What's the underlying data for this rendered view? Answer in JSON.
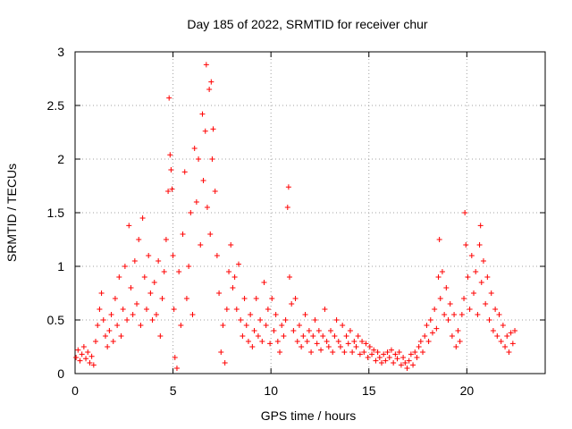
{
  "chart_data": {
    "type": "scatter",
    "title": "Day 185 of 2022, SRMTID for receiver chur",
    "xlabel": "GPS time / hours",
    "ylabel": "SRMTID / TECUs",
    "xlim": [
      0,
      24
    ],
    "ylim": [
      0,
      3
    ],
    "x_ticks": [
      "0",
      "5",
      "10",
      "15",
      "20"
    ],
    "y_ticks": [
      "0",
      "0.5",
      "1",
      "1.5",
      "2",
      "2.5",
      "3"
    ],
    "grid": true,
    "marker": "+",
    "color": "#ff0000",
    "series": [
      {
        "name": "SRMTID",
        "points": [
          [
            0.05,
            0.15
          ],
          [
            0.15,
            0.22
          ],
          [
            0.25,
            0.12
          ],
          [
            0.35,
            0.18
          ],
          [
            0.45,
            0.25
          ],
          [
            0.55,
            0.14
          ],
          [
            0.65,
            0.2
          ],
          [
            0.75,
            0.1
          ],
          [
            0.85,
            0.16
          ],
          [
            0.95,
            0.08
          ],
          [
            1.05,
            0.3
          ],
          [
            1.15,
            0.45
          ],
          [
            1.25,
            0.6
          ],
          [
            1.35,
            0.75
          ],
          [
            1.45,
            0.5
          ],
          [
            1.55,
            0.35
          ],
          [
            1.65,
            0.25
          ],
          [
            1.75,
            0.4
          ],
          [
            1.85,
            0.55
          ],
          [
            1.95,
            0.3
          ],
          [
            2.05,
            0.7
          ],
          [
            2.15,
            0.45
          ],
          [
            2.25,
            0.9
          ],
          [
            2.35,
            0.35
          ],
          [
            2.45,
            0.6
          ],
          [
            2.55,
            1.0
          ],
          [
            2.65,
            0.5
          ],
          [
            2.75,
            1.38
          ],
          [
            2.85,
            0.8
          ],
          [
            2.95,
            0.55
          ],
          [
            3.05,
            1.05
          ],
          [
            3.15,
            0.65
          ],
          [
            3.25,
            1.25
          ],
          [
            3.35,
            0.45
          ],
          [
            3.45,
            1.45
          ],
          [
            3.55,
            0.9
          ],
          [
            3.65,
            0.6
          ],
          [
            3.75,
            1.1
          ],
          [
            3.85,
            0.75
          ],
          [
            3.95,
            0.5
          ],
          [
            4.05,
            0.85
          ],
          [
            4.15,
            0.55
          ],
          [
            4.25,
            1.05
          ],
          [
            4.35,
            0.35
          ],
          [
            4.45,
            0.7
          ],
          [
            4.55,
            0.95
          ],
          [
            4.65,
            1.25
          ],
          [
            4.75,
            1.7
          ],
          [
            4.8,
            2.57
          ],
          [
            4.85,
            2.04
          ],
          [
            4.9,
            1.9
          ],
          [
            4.95,
            1.72
          ],
          [
            5.0,
            1.1
          ],
          [
            5.05,
            0.6
          ],
          [
            5.1,
            0.15
          ],
          [
            5.2,
            0.05
          ],
          [
            5.3,
            0.95
          ],
          [
            5.4,
            0.45
          ],
          [
            5.5,
            1.3
          ],
          [
            5.6,
            1.88
          ],
          [
            5.7,
            0.7
          ],
          [
            5.8,
            1.0
          ],
          [
            5.9,
            1.5
          ],
          [
            6.0,
            0.55
          ],
          [
            6.1,
            2.1
          ],
          [
            6.2,
            1.6
          ],
          [
            6.3,
            2.0
          ],
          [
            6.4,
            1.2
          ],
          [
            6.5,
            2.42
          ],
          [
            6.55,
            1.8
          ],
          [
            6.65,
            2.26
          ],
          [
            6.7,
            2.88
          ],
          [
            6.75,
            1.55
          ],
          [
            6.85,
            2.65
          ],
          [
            6.9,
            1.3
          ],
          [
            6.95,
            2.72
          ],
          [
            7.0,
            2.0
          ],
          [
            7.05,
            2.28
          ],
          [
            7.15,
            1.7
          ],
          [
            7.25,
            1.1
          ],
          [
            7.35,
            0.75
          ],
          [
            7.45,
            0.2
          ],
          [
            7.55,
            0.45
          ],
          [
            7.65,
            0.1
          ],
          [
            7.75,
            0.6
          ],
          [
            7.85,
            0.95
          ],
          [
            7.95,
            1.2
          ],
          [
            8.05,
            0.8
          ],
          [
            8.15,
            0.9
          ],
          [
            8.25,
            0.6
          ],
          [
            8.35,
            1.02
          ],
          [
            8.45,
            0.5
          ],
          [
            8.55,
            0.35
          ],
          [
            8.65,
            0.7
          ],
          [
            8.75,
            0.45
          ],
          [
            8.85,
            0.3
          ],
          [
            8.95,
            0.55
          ],
          [
            9.05,
            0.25
          ],
          [
            9.15,
            0.4
          ],
          [
            9.25,
            0.7
          ],
          [
            9.35,
            0.35
          ],
          [
            9.45,
            0.5
          ],
          [
            9.55,
            0.3
          ],
          [
            9.65,
            0.85
          ],
          [
            9.75,
            0.45
          ],
          [
            9.85,
            0.6
          ],
          [
            9.95,
            0.28
          ],
          [
            10.05,
            0.7
          ],
          [
            10.15,
            0.4
          ],
          [
            10.25,
            0.55
          ],
          [
            10.35,
            0.3
          ],
          [
            10.45,
            0.2
          ],
          [
            10.55,
            0.45
          ],
          [
            10.65,
            0.35
          ],
          [
            10.75,
            0.5
          ],
          [
            10.85,
            1.55
          ],
          [
            10.9,
            1.74
          ],
          [
            10.95,
            0.9
          ],
          [
            11.05,
            0.65
          ],
          [
            11.15,
            0.4
          ],
          [
            11.25,
            0.7
          ],
          [
            11.35,
            0.3
          ],
          [
            11.45,
            0.45
          ],
          [
            11.55,
            0.25
          ],
          [
            11.65,
            0.35
          ],
          [
            11.75,
            0.55
          ],
          [
            11.85,
            0.3
          ],
          [
            11.95,
            0.4
          ],
          [
            12.05,
            0.2
          ],
          [
            12.15,
            0.35
          ],
          [
            12.25,
            0.5
          ],
          [
            12.35,
            0.28
          ],
          [
            12.45,
            0.4
          ],
          [
            12.55,
            0.22
          ],
          [
            12.65,
            0.35
          ],
          [
            12.75,
            0.6
          ],
          [
            12.85,
            0.3
          ],
          [
            12.95,
            0.25
          ],
          [
            13.05,
            0.4
          ],
          [
            13.15,
            0.2
          ],
          [
            13.25,
            0.35
          ],
          [
            13.35,
            0.5
          ],
          [
            13.45,
            0.3
          ],
          [
            13.55,
            0.25
          ],
          [
            13.65,
            0.45
          ],
          [
            13.75,
            0.2
          ],
          [
            13.85,
            0.35
          ],
          [
            13.95,
            0.28
          ],
          [
            14.05,
            0.4
          ],
          [
            14.15,
            0.2
          ],
          [
            14.25,
            0.3
          ],
          [
            14.35,
            0.25
          ],
          [
            14.45,
            0.35
          ],
          [
            14.55,
            0.18
          ],
          [
            14.65,
            0.3
          ],
          [
            14.75,
            0.2
          ],
          [
            14.85,
            0.28
          ],
          [
            14.95,
            0.15
          ],
          [
            15.05,
            0.25
          ],
          [
            15.15,
            0.18
          ],
          [
            15.25,
            0.22
          ],
          [
            15.35,
            0.12
          ],
          [
            15.45,
            0.2
          ],
          [
            15.55,
            0.15
          ],
          [
            15.65,
            0.1
          ],
          [
            15.75,
            0.18
          ],
          [
            15.85,
            0.12
          ],
          [
            15.95,
            0.2
          ],
          [
            16.05,
            0.15
          ],
          [
            16.15,
            0.22
          ],
          [
            16.25,
            0.1
          ],
          [
            16.35,
            0.18
          ],
          [
            16.45,
            0.14
          ],
          [
            16.55,
            0.2
          ],
          [
            16.65,
            0.08
          ],
          [
            16.75,
            0.15
          ],
          [
            16.85,
            0.1
          ],
          [
            16.95,
            0.05
          ],
          [
            17.05,
            0.12
          ],
          [
            17.15,
            0.18
          ],
          [
            17.25,
            0.08
          ],
          [
            17.35,
            0.2
          ],
          [
            17.45,
            0.15
          ],
          [
            17.55,
            0.25
          ],
          [
            17.65,
            0.3
          ],
          [
            17.75,
            0.2
          ],
          [
            17.85,
            0.35
          ],
          [
            17.95,
            0.45
          ],
          [
            18.05,
            0.3
          ],
          [
            18.15,
            0.5
          ],
          [
            18.25,
            0.38
          ],
          [
            18.35,
            0.6
          ],
          [
            18.45,
            0.42
          ],
          [
            18.55,
            0.9
          ],
          [
            18.6,
            1.25
          ],
          [
            18.65,
            0.7
          ],
          [
            18.75,
            0.95
          ],
          [
            18.85,
            0.55
          ],
          [
            18.95,
            0.8
          ],
          [
            19.05,
            0.5
          ],
          [
            19.15,
            0.65
          ],
          [
            19.25,
            0.35
          ],
          [
            19.35,
            0.55
          ],
          [
            19.45,
            0.25
          ],
          [
            19.55,
            0.4
          ],
          [
            19.65,
            0.3
          ],
          [
            19.75,
            0.55
          ],
          [
            19.85,
            0.7
          ],
          [
            19.9,
            1.5
          ],
          [
            19.95,
            1.2
          ],
          [
            20.05,
            0.9
          ],
          [
            20.15,
            0.6
          ],
          [
            20.25,
            1.1
          ],
          [
            20.35,
            0.75
          ],
          [
            20.45,
            0.95
          ],
          [
            20.55,
            0.55
          ],
          [
            20.65,
            1.2
          ],
          [
            20.7,
            1.38
          ],
          [
            20.75,
            0.85
          ],
          [
            20.85,
            1.05
          ],
          [
            20.95,
            0.65
          ],
          [
            21.05,
            0.9
          ],
          [
            21.15,
            0.5
          ],
          [
            21.25,
            0.75
          ],
          [
            21.35,
            0.4
          ],
          [
            21.45,
            0.6
          ],
          [
            21.55,
            0.35
          ],
          [
            21.65,
            0.55
          ],
          [
            21.75,
            0.3
          ],
          [
            21.85,
            0.45
          ],
          [
            21.95,
            0.25
          ],
          [
            22.05,
            0.35
          ],
          [
            22.15,
            0.2
          ],
          [
            22.25,
            0.38
          ],
          [
            22.35,
            0.28
          ],
          [
            22.45,
            0.4
          ]
        ]
      }
    ]
  }
}
